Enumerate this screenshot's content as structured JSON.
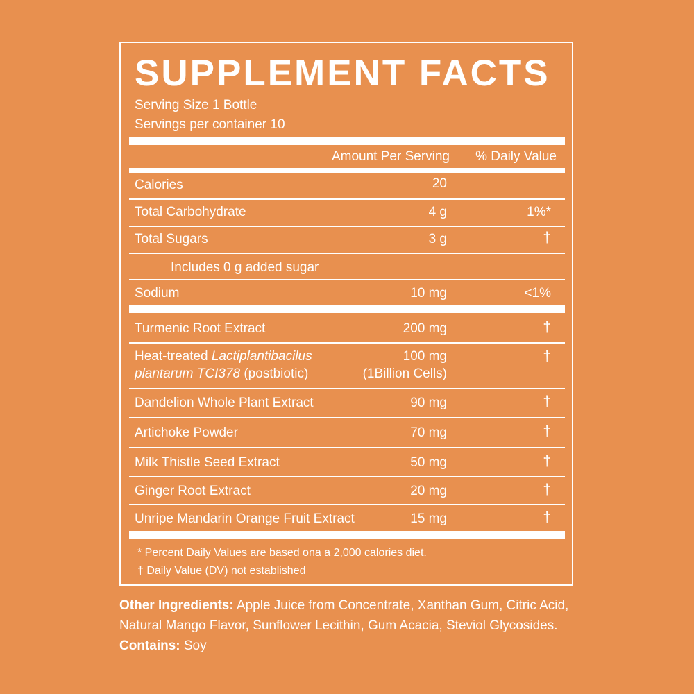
{
  "title": "SUPPLEMENT FACTS",
  "serving_size": "Serving Size 1 Bottle",
  "servings_per_container": "Servings per container 10",
  "headers": {
    "amount": "Amount Per Serving",
    "daily_value": "% Daily Value"
  },
  "nutrients": [
    {
      "name": "Calories",
      "amount": "20",
      "dv": ""
    },
    {
      "name": "Total Carbohydrate",
      "amount": "4 g",
      "dv": "1%*"
    },
    {
      "name": "Total Sugars",
      "amount": "3 g",
      "dv": "†"
    },
    {
      "name": "Includes 0 g added sugar",
      "amount": "",
      "dv": ""
    },
    {
      "name": "Sodium",
      "amount": "10 mg",
      "dv": "<1%"
    }
  ],
  "ingredients": [
    {
      "name": "Turmenic Root Extract",
      "amount": "200 mg",
      "dv": "†"
    },
    {
      "name_prefix": "Heat-treated ",
      "name_italic": "Lactiplantibacilus",
      "name_italic2": "plantarum TCI378",
      "name_suffix": " (postbiotic)",
      "amount": "100 mg",
      "amount2": "(1Billion Cells)",
      "dv": "†"
    },
    {
      "name": "Dandelion Whole Plant Extract",
      "amount": "90 mg",
      "dv": "†"
    },
    {
      "name": "Artichoke Powder",
      "amount": "70 mg",
      "dv": "†"
    },
    {
      "name": "Milk Thistle Seed Extract",
      "amount": "50 mg",
      "dv": "†"
    },
    {
      "name": "Ginger Root Extract",
      "amount": "20 mg",
      "dv": "†"
    },
    {
      "name": "Unripe Mandarin Orange Fruit Extract",
      "amount": "15 mg",
      "dv": "†"
    }
  ],
  "footnotes": {
    "percent": "*  Percent Daily Values are based ona a 2,000 calories diet.",
    "dagger": "†  Daily Value (DV) not established"
  },
  "other_ingredients": {
    "label": "Other Ingredients:",
    "text": " Apple Juice from Concentrate, Xanthan Gum, Citric Acid, Natural Mango Flavor, Sunflower Lecithin, Gum Acacia, Steviol Glycosides. ",
    "contains_label": "Contains:",
    "contains": " Soy"
  },
  "colors": {
    "background": "#E8904F",
    "foreground": "#ffffff"
  }
}
